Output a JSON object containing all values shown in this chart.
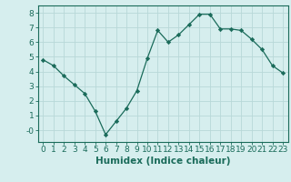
{
  "x": [
    0,
    1,
    2,
    3,
    4,
    5,
    6,
    7,
    8,
    9,
    10,
    11,
    12,
    13,
    14,
    15,
    16,
    17,
    18,
    19,
    20,
    21,
    22,
    23
  ],
  "y": [
    4.8,
    4.4,
    3.7,
    3.1,
    2.5,
    1.3,
    -0.3,
    0.6,
    1.5,
    2.7,
    4.9,
    6.8,
    6.0,
    6.5,
    7.2,
    7.9,
    7.9,
    6.9,
    6.9,
    6.8,
    6.2,
    5.5,
    4.4,
    3.9
  ],
  "line_color": "#1a6b5a",
  "marker": "D",
  "marker_size": 2.2,
  "bg_color": "#d6eeee",
  "grid_color": "#b8d8d8",
  "xlabel": "Humidex (Indice chaleur)",
  "ylim": [
    -0.8,
    8.5
  ],
  "xlim": [
    -0.5,
    23.5
  ],
  "yticks": [
    0,
    1,
    2,
    3,
    4,
    5,
    6,
    7,
    8
  ],
  "ytick_labels": [
    "-0",
    "1",
    "2",
    "3",
    "4",
    "5",
    "6",
    "7",
    "8"
  ],
  "xticks": [
    0,
    1,
    2,
    3,
    4,
    5,
    6,
    7,
    8,
    9,
    10,
    11,
    12,
    13,
    14,
    15,
    16,
    17,
    18,
    19,
    20,
    21,
    22,
    23
  ],
  "axis_color": "#1a6b5a",
  "label_fontsize": 7.5,
  "tick_fontsize": 6.5
}
